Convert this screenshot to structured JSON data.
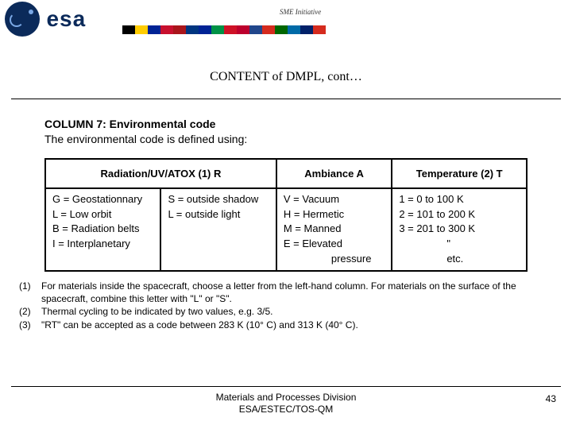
{
  "header": {
    "logo_text": "esa",
    "subtitle": "SME Initiative",
    "flags": [
      "#000000",
      "#ffcc00",
      "#002395",
      "#c8102e",
      "#aa151b",
      "#003580",
      "#002395",
      "#009246",
      "#ce1126",
      "#bc002d",
      "#21468b",
      "#d52b1e",
      "#006600",
      "#006aa7",
      "#012169",
      "#d52b1e"
    ]
  },
  "title": "CONTENT of DMPL, cont…",
  "section": {
    "heading": "COLUMN 7: Environmental code",
    "sub": "The environmental code is defined using:"
  },
  "table": {
    "headers": {
      "rad": "Radiation/UV/ATOX (1) R",
      "amb": "Ambiance A",
      "temp": "Temperature (2) T"
    },
    "cells": {
      "rad_left": [
        "G = Geostationnary",
        "L = Low orbit",
        "B = Radiation belts",
        "I = Interplanetary"
      ],
      "rad_right": [
        "S = outside shadow",
        "L = outside light"
      ],
      "amb": [
        "V = Vacuum",
        "H = Hermetic",
        "M = Manned",
        "E = Elevated",
        "pressure"
      ],
      "temp": [
        "1 = 0 to 100 K",
        "2 = 101 to 200 K",
        "3 = 201 to 300 K",
        "\"",
        "etc."
      ]
    }
  },
  "footnotes": {
    "n1": "(1)",
    "t1": "For materials inside the spacecraft, choose a letter from the left-hand column. For materials on the surface of the spacecraft, combine this letter with \"L\" or \"S\".",
    "n2": "(2)",
    "t2": "Thermal cycling to be indicated by two values, e.g. 3/5.",
    "n3": "(3)",
    "t3": "\"RT\" can be accepted as a code between 283 K (10° C) and 313 K (40° C)."
  },
  "footer": {
    "line1": "Materials and Processes Division",
    "line2": "ESA/ESTEC/TOS-QM",
    "page": "43"
  }
}
